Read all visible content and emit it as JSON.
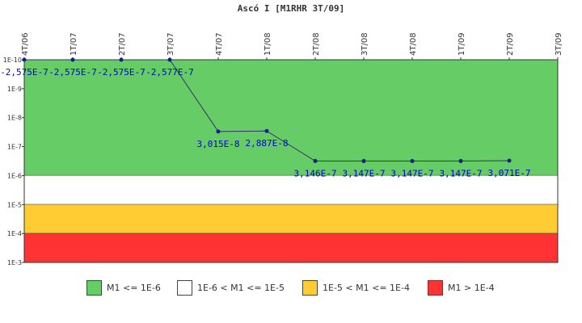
{
  "chart_data": {
    "type": "line",
    "title": "Ascó I [M1RHR 3T/09]",
    "xlabel": "",
    "ylabel": "",
    "y_scale": "log",
    "y_axis_direction": "descending",
    "ylim": [
      1e-10,
      0.001
    ],
    "y_ticks": [
      "1E-10",
      "1E-9",
      "1E-8",
      "1E-7",
      "1E-6",
      "1E-5",
      "1E-4",
      "1E-3"
    ],
    "categories": [
      "4T/06",
      "1T/07",
      "2T/07",
      "3T/07",
      "4T/07",
      "1T/08",
      "2T/08",
      "3T/08",
      "4T/08",
      "1T/09",
      "2T/09",
      "3T/09"
    ],
    "series": [
      {
        "values": [
          -2.575e-07,
          -2.575e-07,
          -2.575e-07,
          -2.577e-07,
          3.015e-08,
          2.887e-08,
          3.146e-07,
          3.147e-07,
          3.147e-07,
          3.147e-07,
          3.071e-07,
          null
        ],
        "labels": [
          "-2,575E-7",
          "-2,575E-7",
          "-2,575E-7",
          "-2,577E-7",
          "3,015E-8",
          "2,887E-8",
          "3,146E-7",
          "3,147E-7",
          "3,147E-7",
          "3,147E-7",
          "3,071E-7",
          ""
        ],
        "color": "#33336b",
        "marker_color": "#1a1a8c"
      }
    ],
    "bands": [
      {
        "label": "M1 <= 1E-6",
        "from": 1e-10,
        "to": 1e-06,
        "color": "#66cc66"
      },
      {
        "label": "1E-6 < M1 <= 1E-5",
        "from": 1e-06,
        "to": 1e-05,
        "color": "#ffffff"
      },
      {
        "label": "1E-5 < M1 <= 1E-4",
        "from": 1e-05,
        "to": 0.0001,
        "color": "#ffcc33"
      },
      {
        "label": "M1 > 1E-4",
        "from": 0.0001,
        "to": 0.001,
        "color": "#ff3333"
      }
    ],
    "grid": false,
    "legend_position": "bottom",
    "label_color": "#0000cc"
  }
}
